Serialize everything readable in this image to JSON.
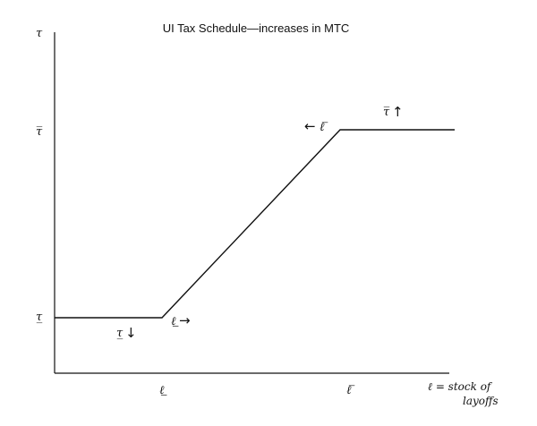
{
  "title": "UI Tax Schedule—increases in MTC",
  "y_axis": {
    "top_label": "τ",
    "upper_rate_label": "τ̅",
    "lower_rate_label": "τ̲"
  },
  "x_axis": {
    "lower_threshold_label": "ℓ̲",
    "upper_threshold_label": "ℓ̅",
    "axis_label_line1": "ℓ = stock of",
    "axis_label_line2": "layoffs"
  },
  "annotations": {
    "lower_rate_symbol": "τ̲",
    "lower_rate_arrow": "↓",
    "lower_threshold_symbol": "ℓ̲",
    "lower_threshold_arrow": "→",
    "upper_threshold_arrow": "←",
    "upper_threshold_symbol": "ℓ̅",
    "upper_rate_symbol": "τ̅",
    "upper_rate_arrow": "↑"
  }
}
